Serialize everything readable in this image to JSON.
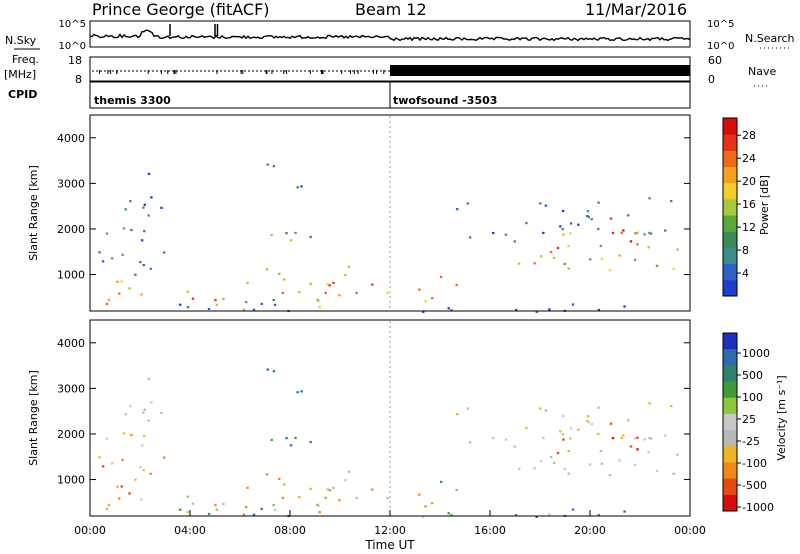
{
  "header": {
    "title": "Prince George (fitACF)",
    "beam": "Beam 12",
    "date": "11/Mar/2016"
  },
  "strips": {
    "nsky_label": "N.Sky",
    "nsky_top": "10^5",
    "nsky_bottom": "10^0",
    "nsearch_label": "N.Search",
    "nsearch_top": "10^5",
    "nsearch_bottom": "10^0",
    "freq_label_1": "Freq.",
    "freq_label_2": "[MHz]",
    "freq_top": "18",
    "freq_bottom": "8",
    "nave_label": "Nave",
    "nave_top": "60",
    "nave_bottom": "0",
    "cpid_label": "CPID",
    "cpid_1": "themis 3300",
    "cpid_2": "twofsound -3503"
  },
  "chart_data": [
    {
      "type": "heatmap",
      "name": "power",
      "ylabel": "Slant Range [km]",
      "ylim": [
        200,
        4500
      ],
      "yticks": [
        "1000",
        "2000",
        "3000",
        "4000"
      ],
      "xlim": [
        0,
        24
      ],
      "colorbar": {
        "label": "Power [dB]",
        "ticks": [
          "4",
          "8",
          "12",
          "16",
          "20",
          "24",
          "28"
        ],
        "range": [
          0,
          31
        ]
      }
    },
    {
      "type": "heatmap",
      "name": "velocity",
      "ylabel": "Slant Range [km]",
      "ylim": [
        200,
        4500
      ],
      "yticks": [
        "1000",
        "2000",
        "3000",
        "4000"
      ],
      "xlim": [
        0,
        24
      ],
      "xlabel": "Time UT",
      "xticks": [
        "00:00",
        "04:00",
        "08:00",
        "12:00",
        "16:00",
        "20:00",
        "00:00"
      ],
      "colorbar": {
        "label": "Velocity [m s⁻¹]",
        "ticks": [
          "1000",
          "500",
          "100",
          "25",
          "-25",
          "-100",
          "-500",
          "-1000"
        ]
      }
    }
  ]
}
